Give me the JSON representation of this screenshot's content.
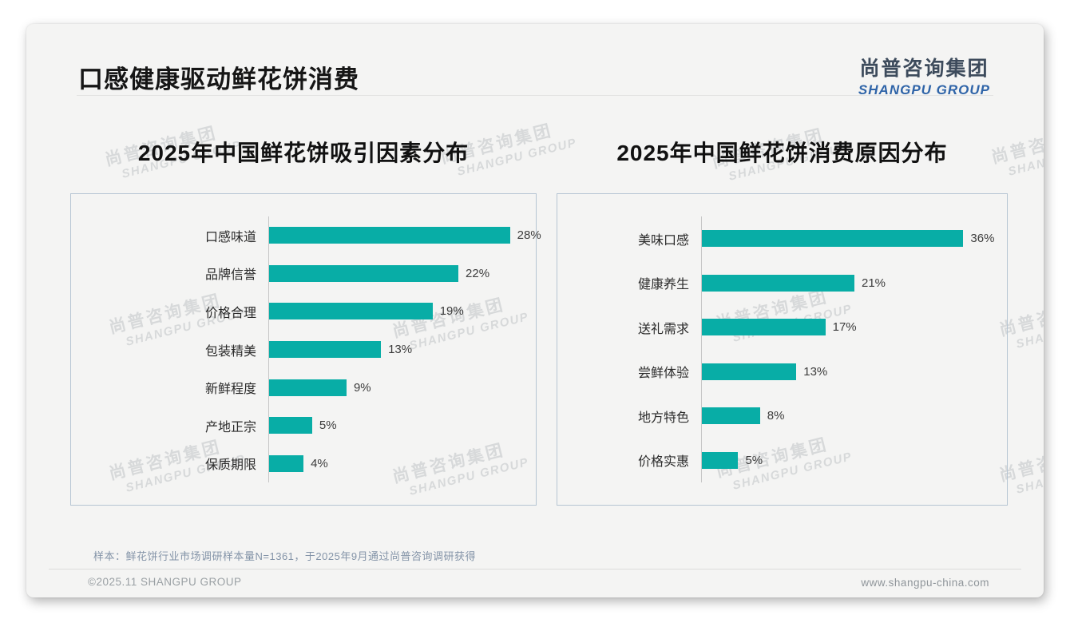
{
  "page": {
    "title": "口感健康驱动鲜花饼消费",
    "logo": {
      "name_cn": "尚普咨询集团",
      "name_en": "SHANGPU GROUP"
    },
    "sample_note": "样本：鲜花饼行业市场调研样本量N=1361，于2025年9月通过尚普咨询调研获得",
    "footer": {
      "copyright": "©2025.11 SHANGPU GROUP",
      "website": "www.shangpu-china.com"
    },
    "watermark": {
      "line_cn": "尚普咨询集团",
      "line_en": "SHANGPU GROUP"
    }
  },
  "colors": {
    "bar_teal": "#08ada6",
    "logo_blue": "#2f64a8",
    "logo_dark": "#3d4b5c",
    "note_text": "#8494a8",
    "panel_border": "#b6c5d3"
  },
  "chart_data": [
    {
      "type": "bar",
      "orientation": "horizontal",
      "title": "2025年中国鲜花饼吸引因素分布",
      "categories": [
        "口感味道",
        "品牌信誉",
        "价格合理",
        "包装精美",
        "新鲜程度",
        "产地正宗",
        "保质期限"
      ],
      "values": [
        28,
        22,
        19,
        13,
        9,
        5,
        4
      ],
      "unit": "%",
      "xlim": [
        0,
        31
      ],
      "grid": false,
      "legend": "none",
      "bar_color": "#08ada6"
    },
    {
      "type": "bar",
      "orientation": "horizontal",
      "title": "2025年中国鲜花饼消费原因分布",
      "categories": [
        "美味口感",
        "健康养生",
        "送礼需求",
        "尝鲜体验",
        "地方特色",
        "价格实惠"
      ],
      "values": [
        36,
        21,
        17,
        13,
        8,
        5
      ],
      "unit": "%",
      "xlim": [
        0,
        42
      ],
      "grid": false,
      "legend": "none",
      "bar_color": "#08ada6"
    }
  ]
}
